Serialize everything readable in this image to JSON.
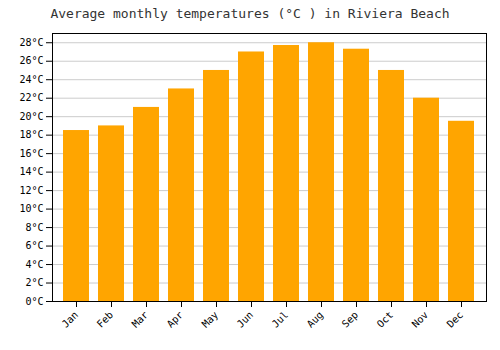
{
  "chart_data": {
    "type": "bar",
    "title": "Average monthly temperatures (°C ) in Riviera Beach",
    "categories": [
      "Jan",
      "Feb",
      "Mar",
      "Apr",
      "May",
      "Jun",
      "Jul",
      "Aug",
      "Sep",
      "Oct",
      "Nov",
      "Dec"
    ],
    "values": [
      18.5,
      19.0,
      21.0,
      23.0,
      25.0,
      27.0,
      27.7,
      28.0,
      27.3,
      25.0,
      22.0,
      19.5
    ],
    "color": "#FFA500",
    "ylim": [
      0,
      29
    ],
    "yticks": [
      {
        "value": 0,
        "label": "0°C"
      },
      {
        "value": 2,
        "label": "2°C"
      },
      {
        "value": 4,
        "label": "4°C"
      },
      {
        "value": 6,
        "label": "6°C"
      },
      {
        "value": 8,
        "label": "8°C"
      },
      {
        "value": 10,
        "label": "10°C"
      },
      {
        "value": 12,
        "label": "12°C"
      },
      {
        "value": 14,
        "label": "14°C"
      },
      {
        "value": 16,
        "label": "16°C"
      },
      {
        "value": 18,
        "label": "18°C"
      },
      {
        "value": 20,
        "label": "20°C"
      },
      {
        "value": 22,
        "label": "22°C"
      },
      {
        "value": 24,
        "label": "24°C"
      },
      {
        "value": 26,
        "label": "26°C"
      },
      {
        "value": 28,
        "label": "28°C"
      }
    ],
    "grid": true
  }
}
